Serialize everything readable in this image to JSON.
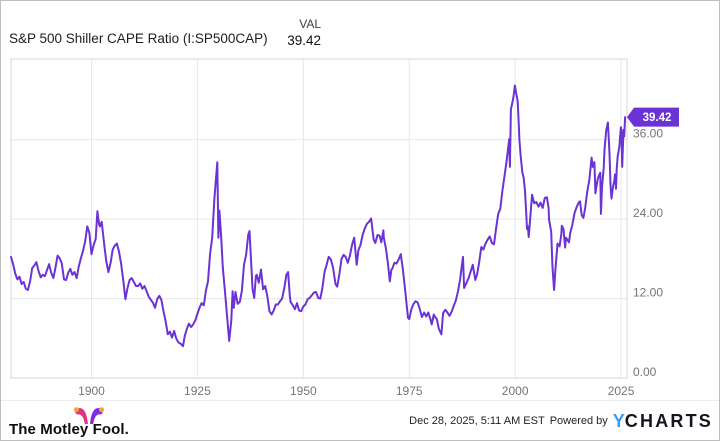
{
  "header": {
    "title": "S&P 500 Shiller CAPE Ratio (I:SP500CAP)",
    "val_label": "VAL",
    "val_value": "39.42"
  },
  "chart_data": {
    "type": "line",
    "title": "S&P 500 Shiller CAPE Ratio (I:SP500CAP)",
    "xlabel": "",
    "ylabel": "",
    "series_name": "S&P 500 Shiller CAPE Ratio",
    "current_value": 39.42,
    "value_label": "39.42",
    "line_color": "#6b32d4",
    "grid_color": "#e7e7e7",
    "border_color": "#d7d7d7",
    "tick_color": "#757575",
    "grid": true,
    "legend": "none",
    "xlim": [
      1881,
      2026.4
    ],
    "ylim": [
      0,
      48.2
    ],
    "x_ticks": [
      1900,
      1925,
      1950,
      1975,
      2000,
      2025
    ],
    "x_tick_labels": [
      "1900",
      "1925",
      "1950",
      "1975",
      "2000",
      "2025"
    ],
    "y_ticks": [
      36,
      24,
      12,
      0
    ],
    "y_tick_labels": [
      "36.00",
      "24.00",
      "12.00",
      "0.00"
    ],
    "points": [
      [
        1881,
        18.3
      ],
      [
        1881.5,
        17.2
      ],
      [
        1882,
        15.8
      ],
      [
        1882.5,
        14.9
      ],
      [
        1883,
        15.3
      ],
      [
        1883.5,
        14.2
      ],
      [
        1884,
        14.5
      ],
      [
        1884.5,
        13.5
      ],
      [
        1885,
        13.3
      ],
      [
        1885.5,
        14.6
      ],
      [
        1886,
        16.6
      ],
      [
        1886.5,
        17.0
      ],
      [
        1887,
        17.5
      ],
      [
        1887.5,
        16.2
      ],
      [
        1888,
        15.2
      ],
      [
        1888.5,
        15.6
      ],
      [
        1889,
        15.4
      ],
      [
        1889.5,
        16.3
      ],
      [
        1890,
        17.2
      ],
      [
        1890.5,
        15.9
      ],
      [
        1891,
        15.1
      ],
      [
        1891.5,
        16.7
      ],
      [
        1892,
        18.5
      ],
      [
        1892.5,
        18.1
      ],
      [
        1893,
        17.3
      ],
      [
        1893.5,
        14.9
      ],
      [
        1894,
        14.8
      ],
      [
        1894.5,
        15.9
      ],
      [
        1895,
        16.5
      ],
      [
        1895.5,
        15.6
      ],
      [
        1896,
        16.0
      ],
      [
        1896.5,
        15.1
      ],
      [
        1897,
        16.9
      ],
      [
        1897.5,
        18.1
      ],
      [
        1898,
        19.2
      ],
      [
        1898.5,
        20.6
      ],
      [
        1899,
        22.9
      ],
      [
        1899.5,
        21.9
      ],
      [
        1900,
        18.7
      ],
      [
        1900.5,
        20.1
      ],
      [
        1901,
        21.0
      ],
      [
        1901.4,
        25.2
      ],
      [
        1901.8,
        23.2
      ],
      [
        1902,
        22.9
      ],
      [
        1902.4,
        23.6
      ],
      [
        1903,
        20.2
      ],
      [
        1903.5,
        17.6
      ],
      [
        1904,
        16.0
      ],
      [
        1904.5,
        17.4
      ],
      [
        1905,
        19.4
      ],
      [
        1905.5,
        20.0
      ],
      [
        1906,
        20.3
      ],
      [
        1906.5,
        19.1
      ],
      [
        1907,
        17.2
      ],
      [
        1907.6,
        14.2
      ],
      [
        1908,
        11.9
      ],
      [
        1908.5,
        13.6
      ],
      [
        1909,
        14.8
      ],
      [
        1909.5,
        15.1
      ],
      [
        1910,
        14.5
      ],
      [
        1910.5,
        13.9
      ],
      [
        1911,
        13.9
      ],
      [
        1911.5,
        14.3
      ],
      [
        1912,
        13.5
      ],
      [
        1912.5,
        13.9
      ],
      [
        1913,
        13.1
      ],
      [
        1913.5,
        12.3
      ],
      [
        1914,
        11.8
      ],
      [
        1914.5,
        11.4
      ],
      [
        1915,
        10.6
      ],
      [
        1915.5,
        11.9
      ],
      [
        1916,
        12.4
      ],
      [
        1916.5,
        11.8
      ],
      [
        1917,
        10.1
      ],
      [
        1917.5,
        8.6
      ],
      [
        1918,
        6.6
      ],
      [
        1918.5,
        7.0
      ],
      [
        1919,
        6.1
      ],
      [
        1919.5,
        7.1
      ],
      [
        1920,
        6.0
      ],
      [
        1920.5,
        5.4
      ],
      [
        1921,
        5.2
      ],
      [
        1921.6,
        4.8
      ],
      [
        1922,
        6.3
      ],
      [
        1922.5,
        7.4
      ],
      [
        1923,
        8.2
      ],
      [
        1923.5,
        7.7
      ],
      [
        1924,
        8.1
      ],
      [
        1924.5,
        8.7
      ],
      [
        1925,
        9.7
      ],
      [
        1925.5,
        10.6
      ],
      [
        1926,
        11.3
      ],
      [
        1926.5,
        11.0
      ],
      [
        1927,
        13.2
      ],
      [
        1927.5,
        14.6
      ],
      [
        1928,
        18.8
      ],
      [
        1928.5,
        21.2
      ],
      [
        1929,
        27.1
      ],
      [
        1929.7,
        32.6
      ],
      [
        1929.95,
        21.2
      ],
      [
        1930.2,
        25.3
      ],
      [
        1930.6,
        21.5
      ],
      [
        1931,
        16.7
      ],
      [
        1931.5,
        13.2
      ],
      [
        1932,
        9.3
      ],
      [
        1932.5,
        5.6
      ],
      [
        1933,
        8.7
      ],
      [
        1933.3,
        13.1
      ],
      [
        1933.6,
        10.6
      ],
      [
        1934,
        13.0
      ],
      [
        1934.5,
        11.2
      ],
      [
        1935,
        11.5
      ],
      [
        1935.5,
        13.2
      ],
      [
        1936,
        17.1
      ],
      [
        1936.5,
        18.6
      ],
      [
        1937,
        21.6
      ],
      [
        1937.3,
        22.2
      ],
      [
        1937.8,
        16.2
      ],
      [
        1938,
        13.5
      ],
      [
        1938.4,
        12.1
      ],
      [
        1938.8,
        15.4
      ],
      [
        1939,
        15.6
      ],
      [
        1939.5,
        14.4
      ],
      [
        1940,
        16.4
      ],
      [
        1940.5,
        13.4
      ],
      [
        1941,
        13.9
      ],
      [
        1941.5,
        12.4
      ],
      [
        1942,
        10.1
      ],
      [
        1942.5,
        9.6
      ],
      [
        1943,
        10.2
      ],
      [
        1943.5,
        11.1
      ],
      [
        1944,
        11.1
      ],
      [
        1944.5,
        11.6
      ],
      [
        1945,
        12.0
      ],
      [
        1945.5,
        13.6
      ],
      [
        1946,
        15.6
      ],
      [
        1946.4,
        16.0
      ],
      [
        1946.8,
        12.4
      ],
      [
        1947,
        11.5
      ],
      [
        1947.5,
        11.0
      ],
      [
        1948,
        10.4
      ],
      [
        1948.5,
        11.3
      ],
      [
        1949,
        10.2
      ],
      [
        1949.5,
        10.1
      ],
      [
        1950,
        10.8
      ],
      [
        1950.5,
        11.1
      ],
      [
        1951,
        11.9
      ],
      [
        1951.5,
        12.1
      ],
      [
        1952,
        12.5
      ],
      [
        1952.5,
        12.9
      ],
      [
        1953,
        13.0
      ],
      [
        1953.5,
        12.1
      ],
      [
        1954,
        12.0
      ],
      [
        1954.5,
        13.6
      ],
      [
        1955,
        16.0
      ],
      [
        1955.5,
        17.1
      ],
      [
        1956,
        18.3
      ],
      [
        1956.5,
        17.9
      ],
      [
        1957,
        16.7
      ],
      [
        1957.6,
        14.2
      ],
      [
        1958,
        13.8
      ],
      [
        1958.5,
        15.6
      ],
      [
        1959,
        18.0
      ],
      [
        1959.5,
        18.6
      ],
      [
        1960,
        18.3
      ],
      [
        1960.5,
        17.4
      ],
      [
        1961,
        18.5
      ],
      [
        1961.5,
        20.1
      ],
      [
        1962,
        21.2
      ],
      [
        1962.6,
        17.1
      ],
      [
        1963,
        19.3
      ],
      [
        1963.5,
        20.1
      ],
      [
        1964,
        21.6
      ],
      [
        1964.5,
        22.6
      ],
      [
        1965,
        23.3
      ],
      [
        1965.5,
        23.6
      ],
      [
        1966,
        24.1
      ],
      [
        1966.6,
        20.9
      ],
      [
        1967,
        20.4
      ],
      [
        1967.5,
        21.6
      ],
      [
        1968,
        21.5
      ],
      [
        1968.4,
        20.5
      ],
      [
        1968.9,
        22.3
      ],
      [
        1969,
        21.2
      ],
      [
        1969.5,
        19.6
      ],
      [
        1970,
        17.1
      ],
      [
        1970.4,
        14.6
      ],
      [
        1970.8,
        16.4
      ],
      [
        1971,
        16.5
      ],
      [
        1971.5,
        17.4
      ],
      [
        1972,
        17.3
      ],
      [
        1972.5,
        17.9
      ],
      [
        1973,
        18.7
      ],
      [
        1973.5,
        16.4
      ],
      [
        1974,
        13.5
      ],
      [
        1974.7,
        9.1
      ],
      [
        1975,
        8.9
      ],
      [
        1975.5,
        10.4
      ],
      [
        1976,
        11.2
      ],
      [
        1976.5,
        11.6
      ],
      [
        1977,
        11.4
      ],
      [
        1977.5,
        10.4
      ],
      [
        1978,
        9.2
      ],
      [
        1978.5,
        9.9
      ],
      [
        1979,
        9.3
      ],
      [
        1979.5,
        9.9
      ],
      [
        1980,
        8.9
      ],
      [
        1980.3,
        8.1
      ],
      [
        1980.8,
        9.6
      ],
      [
        1981,
        9.3
      ],
      [
        1981.5,
        8.9
      ],
      [
        1982,
        7.4
      ],
      [
        1982.6,
        6.6
      ],
      [
        1983,
        9.8
      ],
      [
        1983.5,
        10.3
      ],
      [
        1984,
        9.9
      ],
      [
        1984.5,
        9.4
      ],
      [
        1985,
        10.0
      ],
      [
        1985.5,
        10.9
      ],
      [
        1986,
        11.7
      ],
      [
        1986.5,
        13.1
      ],
      [
        1987,
        14.9
      ],
      [
        1987.7,
        18.3
      ],
      [
        1987.95,
        13.6
      ],
      [
        1988.3,
        14.1
      ],
      [
        1989,
        15.1
      ],
      [
        1989.5,
        16.1
      ],
      [
        1990,
        17.1
      ],
      [
        1990.6,
        14.8
      ],
      [
        1991,
        15.6
      ],
      [
        1991.5,
        17.4
      ],
      [
        1992,
        19.8
      ],
      [
        1992.5,
        19.4
      ],
      [
        1993,
        20.3
      ],
      [
        1993.5,
        20.9
      ],
      [
        1994,
        21.4
      ],
      [
        1994.5,
        20.4
      ],
      [
        1995,
        20.2
      ],
      [
        1995.5,
        22.6
      ],
      [
        1996,
        24.8
      ],
      [
        1996.5,
        25.6
      ],
      [
        1997,
        28.3
      ],
      [
        1997.5,
        30.6
      ],
      [
        1998,
        32.9
      ],
      [
        1998.6,
        36.1
      ],
      [
        1998.75,
        31.9
      ],
      [
        1999,
        40.6
      ],
      [
        1999.3,
        41.5
      ],
      [
        1999.6,
        42.5
      ],
      [
        1999.95,
        44.2
      ],
      [
        2000.2,
        43.2
      ],
      [
        2000.6,
        41.8
      ],
      [
        2000.9,
        37.5
      ],
      [
        2001,
        36.0
      ],
      [
        2001.3,
        33.5
      ],
      [
        2001.7,
        31.0
      ],
      [
        2002,
        30.3
      ],
      [
        2002.3,
        28.5
      ],
      [
        2002.6,
        25.0
      ],
      [
        2002.8,
        22.5
      ],
      [
        2003,
        22.9
      ],
      [
        2003.2,
        21.3
      ],
      [
        2003.6,
        24.5
      ],
      [
        2004,
        27.7
      ],
      [
        2004.5,
        26.4
      ],
      [
        2005,
        26.6
      ],
      [
        2005.5,
        25.9
      ],
      [
        2006,
        26.5
      ],
      [
        2006.5,
        25.7
      ],
      [
        2007,
        27.2
      ],
      [
        2007.5,
        27.3
      ],
      [
        2007.9,
        25.7
      ],
      [
        2008,
        24.0
      ],
      [
        2008.5,
        22.1
      ],
      [
        2008.8,
        17.0
      ],
      [
        2008.95,
        15.4
      ],
      [
        2009.2,
        13.3
      ],
      [
        2009.5,
        16.4
      ],
      [
        2009.9,
        19.5
      ],
      [
        2010,
        20.3
      ],
      [
        2010.5,
        19.9
      ],
      [
        2010.9,
        21.7
      ],
      [
        2011,
        23.0
      ],
      [
        2011.4,
        22.5
      ],
      [
        2011.8,
        19.7
      ],
      [
        2012,
        21.2
      ],
      [
        2012.4,
        20.8
      ],
      [
        2012.7,
        20.5
      ],
      [
        2013,
        21.9
      ],
      [
        2013.5,
        23.1
      ],
      [
        2014,
        24.9
      ],
      [
        2014.5,
        25.8
      ],
      [
        2015,
        26.5
      ],
      [
        2015.3,
        26.7
      ],
      [
        2015.7,
        24.6
      ],
      [
        2016.1,
        24.2
      ],
      [
        2016.5,
        25.6
      ],
      [
        2017,
        28.1
      ],
      [
        2017.5,
        29.9
      ],
      [
        2018.05,
        33.3
      ],
      [
        2018.3,
        31.9
      ],
      [
        2018.7,
        32.6
      ],
      [
        2018.95,
        27.9
      ],
      [
        2019.2,
        29.0
      ],
      [
        2019.5,
        30.1
      ],
      [
        2019.9,
        30.8
      ],
      [
        2020.1,
        31.0
      ],
      [
        2020.25,
        24.8
      ],
      [
        2020.5,
        28.8
      ],
      [
        2020.9,
        31.7
      ],
      [
        2021.1,
        34.5
      ],
      [
        2021.5,
        37.4
      ],
      [
        2021.9,
        38.6
      ],
      [
        2022.1,
        36.1
      ],
      [
        2022.3,
        33.5
      ],
      [
        2022.5,
        29.1
      ],
      [
        2022.75,
        27.1
      ],
      [
        2022.9,
        28.0
      ],
      [
        2023.1,
        28.9
      ],
      [
        2023.4,
        29.8
      ],
      [
        2023.6,
        30.8
      ],
      [
        2023.8,
        28.6
      ],
      [
        2024.0,
        31.8
      ],
      [
        2024.2,
        33.5
      ],
      [
        2024.4,
        34.2
      ],
      [
        2024.6,
        35.0
      ],
      [
        2024.75,
        36.3
      ],
      [
        2024.95,
        37.9
      ],
      [
        2025.1,
        37.2
      ],
      [
        2025.27,
        31.9
      ],
      [
        2025.45,
        35.5
      ],
      [
        2025.6,
        37.5
      ],
      [
        2025.75,
        36.5
      ],
      [
        2025.95,
        39.42
      ]
    ]
  },
  "footer": {
    "brand": "The Motley Fool.",
    "timestamp": "Dec 28, 2025, 5:11 AM EST",
    "powered_by": "Powered by",
    "ycharts_y": "Y",
    "ycharts_rest": "CHARTS",
    "colors": {
      "mf_pink": "#e5317f",
      "mf_purple": "#7d2de2",
      "mf_gold": "#f2a33c",
      "ycharts_blue": "#359df3"
    }
  }
}
